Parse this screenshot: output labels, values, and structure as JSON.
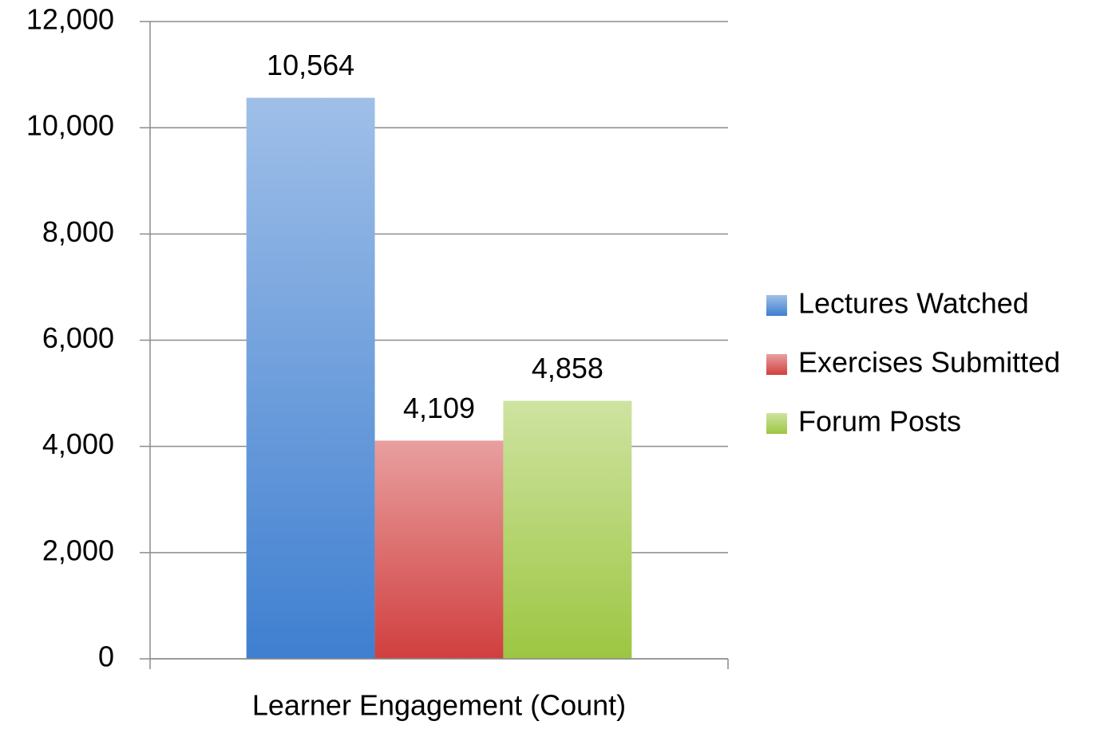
{
  "chart_data": {
    "type": "bar",
    "categories": [
      "Learner Engagement (Count)"
    ],
    "series": [
      {
        "name": "Lectures Watched",
        "color": "#3f7fd0",
        "values": [
          10564
        ],
        "value_labels": [
          "10,564"
        ]
      },
      {
        "name": "Exercises Submitted",
        "color": "#d13f3f",
        "values": [
          4109
        ],
        "value_labels": [
          "4,109"
        ]
      },
      {
        "name": "Forum Posts",
        "color": "#9dc642",
        "values": [
          4858
        ],
        "value_labels": [
          "4,858"
        ]
      }
    ],
    "ylim": [
      0,
      12000
    ],
    "yticks": [
      0,
      {
        "value": 2000,
        "label": "2,000"
      },
      {
        "value": 4000,
        "label": "4,000"
      },
      {
        "value": 6000,
        "label": "6,000"
      },
      {
        "value": 8000,
        "label": "8,000"
      },
      {
        "value": 10000,
        "label": "10,000"
      },
      {
        "value": 12000,
        "label": "12,000"
      }
    ],
    "grid": true,
    "legend": "right"
  }
}
